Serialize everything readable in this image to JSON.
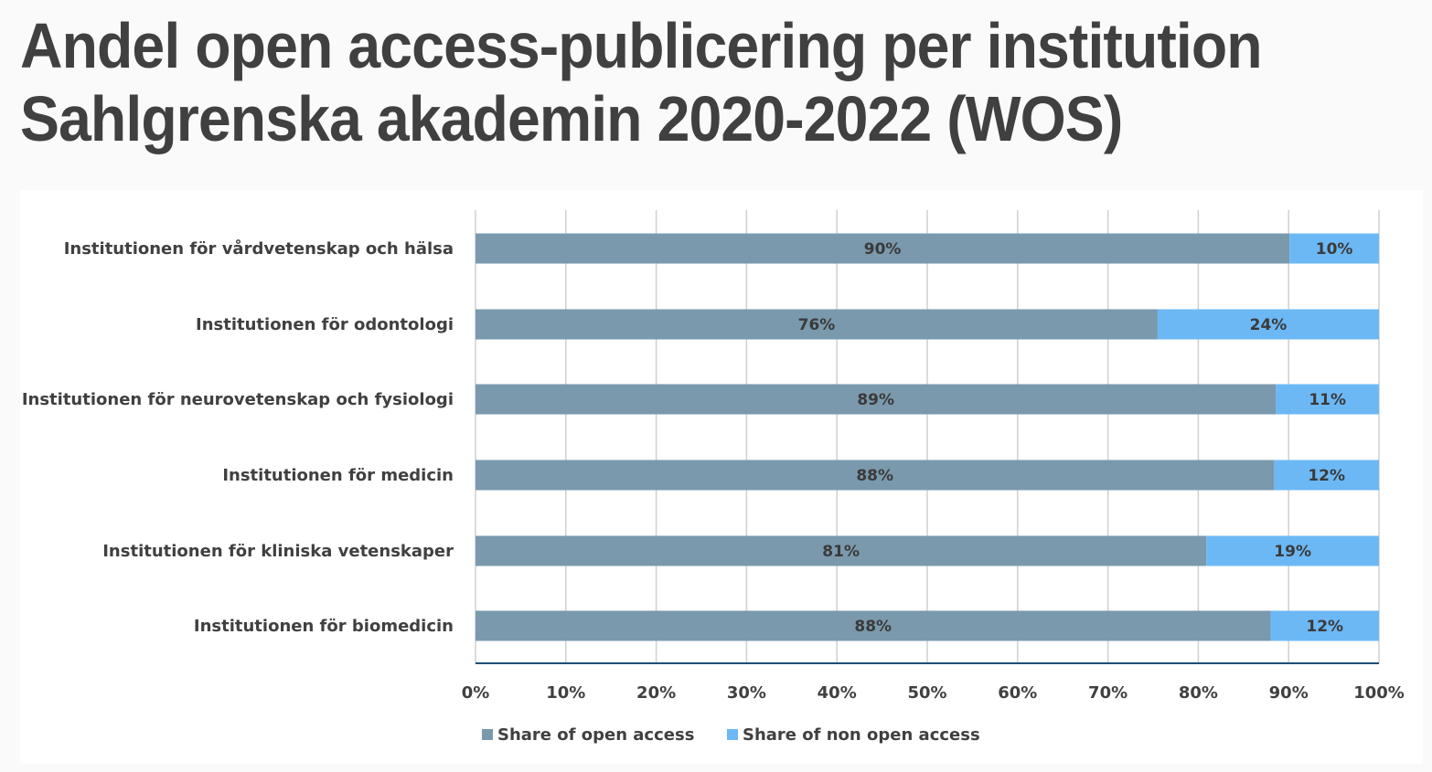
{
  "title": {
    "line1": "Andel open access-publicering per institution",
    "line2": "Sahlgrenska akademin 2020-2022 (WOS)"
  },
  "colors": {
    "open_access": "#7a99ad",
    "non_open_access": "#6cb8f5",
    "gridline": "#d0d0d0",
    "axis": "#1f4e79",
    "text": "#404040"
  },
  "chart_data": {
    "type": "bar",
    "orientation": "horizontal",
    "stacked": true,
    "percent_stacked": true,
    "title": "Andel open access-publicering per institution Sahlgrenska akademin 2020-2022 (WOS)",
    "categories": [
      "Institutionen för vårdvetenskap och hälsa",
      "Institutionen för odontologi",
      "Institutionen för neurovetenskap och fysiologi",
      "Institutionen för medicin",
      "Institutionen för kliniska vetenskaper",
      "Institutionen för biomedicin"
    ],
    "series": [
      {
        "name": "Share of open access",
        "values": [
          90,
          76,
          89,
          88,
          81,
          88
        ],
        "precise_values": [
          90.1,
          75.5,
          88.6,
          88.4,
          80.9,
          88.0
        ],
        "labels": [
          "90%",
          "76%",
          "89%",
          "88%",
          "81%",
          "88%"
        ]
      },
      {
        "name": "Share of non open access",
        "values": [
          10,
          24,
          11,
          12,
          19,
          12
        ],
        "labels": [
          "10%",
          "24%",
          "11%",
          "12%",
          "19%",
          "12%"
        ]
      }
    ],
    "x_ticks": [
      "0%",
      "10%",
      "20%",
      "30%",
      "40%",
      "50%",
      "60%",
      "70%",
      "80%",
      "90%",
      "100%"
    ],
    "xlim": [
      0,
      100
    ],
    "grid": true,
    "legend_position": "bottom"
  }
}
